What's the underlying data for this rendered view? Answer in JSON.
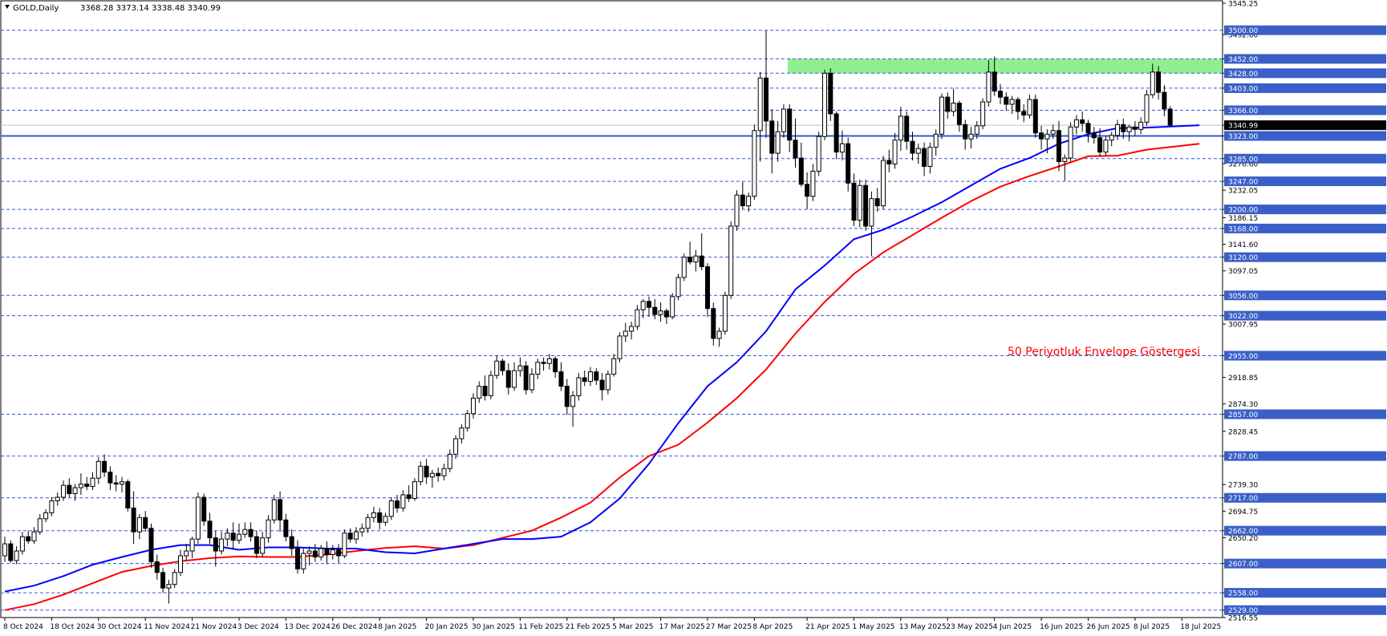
{
  "header": {
    "symbol": "GOLD,Daily",
    "ohlc": "3368.28 3373.14 3338.48 3340.99"
  },
  "annotation": "50 Periyotluk Envelope Göstergesi",
  "colors": {
    "bull_body": "#ffffff",
    "bear_body": "#000000",
    "candle_outline": "#000000",
    "level_line": "#2e5cd6",
    "key_level": "#2e5cd6",
    "upper_envelope": "#0000ff",
    "lower_envelope": "#ff0000",
    "resistance_zone": "#90ee90",
    "label_bg": "#3a5fc8",
    "label_text": "#ffffff",
    "current_price_bg": "#000000",
    "annotation": "#ff0000",
    "axis_text": "#000000"
  },
  "chart_data": {
    "type": "candlestick",
    "ylim": [
      2516.55,
      3545.25
    ],
    "y_ticks": [
      "3545.25",
      "3492.60",
      "3452.00",
      "3428.00",
      "3403.00",
      "3366.00",
      "3340.99",
      "3323.00",
      "3285.00",
      "3276.60",
      "3247.00",
      "3232.05",
      "3200.00",
      "3186.15",
      "3168.00",
      "3141.60",
      "3120.00",
      "3097.05",
      "3056.00",
      "3022.00",
      "3007.95",
      "2955.00",
      "2918.85",
      "2874.30",
      "2857.00",
      "2828.45",
      "2787.00",
      "2739.30",
      "2717.00",
      "2694.75",
      "2662.00",
      "2650.20",
      "2607.00",
      "2558.00",
      "2529.00",
      "2516.55"
    ],
    "price_levels": [
      3500,
      3452,
      3428,
      3403,
      3366,
      3323,
      3285,
      3247,
      3200,
      3168,
      3120,
      3056,
      3022,
      2955,
      2857,
      2787,
      2717,
      2662,
      2607,
      2558,
      2529
    ],
    "level_labels": [
      "3500.00",
      "3452.00",
      "3428.00",
      "3403.00",
      "3366.00",
      "3323.00",
      "3285.00",
      "3247.00",
      "3200.00",
      "3168.00",
      "3120.00",
      "3056.00",
      "3022.00",
      "2955.00",
      "2857.00",
      "2787.00",
      "2717.00",
      "2662.00",
      "2607.00",
      "2558.00",
      "2529.00"
    ],
    "key_level": 3323,
    "current_price": 3340.99,
    "current_price_label": "3340.99",
    "resistance_zone": [
      3428,
      3452
    ],
    "x_labels": [
      "8 Oct 2024",
      "18 Oct 2024",
      "30 Oct 2024",
      "11 Nov 2024",
      "21 Nov 2024",
      "3 Dec 2024",
      "13 Dec 2024",
      "26 Dec 2024",
      "8 Jan 2025",
      "20 Jan 2025",
      "30 Jan 2025",
      "11 Feb 2025",
      "21 Feb 2025",
      "5 Mar 2025",
      "17 Mar 2025",
      "27 Mar 2025",
      "8 Apr 2025",
      "21 Apr 2025",
      "1 May 2025",
      "13 May 2025",
      "23 May 2025",
      "4 Jun 2025",
      "16 Jun 2025",
      "26 Jun 2025",
      "8 Jul 2025",
      "18 Jul 2025"
    ],
    "x_label_index": [
      0,
      8,
      16,
      24,
      32,
      40,
      48,
      56,
      64,
      72,
      80,
      88,
      96,
      104,
      112,
      120,
      128,
      137,
      145,
      153,
      161,
      169,
      177,
      185,
      193,
      201
    ],
    "candles": [
      [
        2620,
        2652,
        2610,
        2640
      ],
      [
        2640,
        2646,
        2608,
        2612
      ],
      [
        2612,
        2636,
        2606,
        2628
      ],
      [
        2628,
        2660,
        2622,
        2652
      ],
      [
        2652,
        2662,
        2640,
        2645
      ],
      [
        2645,
        2668,
        2640,
        2660
      ],
      [
        2660,
        2690,
        2655,
        2682
      ],
      [
        2682,
        2698,
        2676,
        2692
      ],
      [
        2692,
        2718,
        2686,
        2712
      ],
      [
        2712,
        2726,
        2704,
        2718
      ],
      [
        2718,
        2746,
        2712,
        2738
      ],
      [
        2738,
        2750,
        2718,
        2724
      ],
      [
        2724,
        2740,
        2712,
        2734
      ],
      [
        2734,
        2758,
        2722,
        2740
      ],
      [
        2740,
        2752,
        2730,
        2736
      ],
      [
        2736,
        2760,
        2730,
        2750
      ],
      [
        2750,
        2785,
        2740,
        2778
      ],
      [
        2778,
        2790,
        2752,
        2760
      ],
      [
        2760,
        2770,
        2730,
        2742
      ],
      [
        2742,
        2755,
        2728,
        2740
      ],
      [
        2740,
        2752,
        2726,
        2744
      ],
      [
        2744,
        2748,
        2694,
        2700
      ],
      [
        2700,
        2728,
        2640,
        2660
      ],
      [
        2660,
        2690,
        2648,
        2684
      ],
      [
        2684,
        2695,
        2660,
        2666
      ],
      [
        2666,
        2674,
        2600,
        2610
      ],
      [
        2610,
        2622,
        2580,
        2592
      ],
      [
        2592,
        2600,
        2558,
        2566
      ],
      [
        2566,
        2580,
        2540,
        2572
      ],
      [
        2572,
        2598,
        2566,
        2592
      ],
      [
        2592,
        2630,
        2586,
        2620
      ],
      [
        2620,
        2640,
        2612,
        2628
      ],
      [
        2628,
        2652,
        2616,
        2648
      ],
      [
        2648,
        2726,
        2640,
        2718
      ],
      [
        2718,
        2724,
        2670,
        2678
      ],
      [
        2678,
        2692,
        2640,
        2650
      ],
      [
        2650,
        2662,
        2602,
        2628
      ],
      [
        2628,
        2660,
        2622,
        2648
      ],
      [
        2648,
        2666,
        2636,
        2658
      ],
      [
        2658,
        2676,
        2630,
        2646
      ],
      [
        2646,
        2674,
        2640,
        2656
      ],
      [
        2656,
        2676,
        2650,
        2664
      ],
      [
        2664,
        2676,
        2644,
        2652
      ],
      [
        2652,
        2662,
        2616,
        2624
      ],
      [
        2624,
        2660,
        2618,
        2650
      ],
      [
        2650,
        2688,
        2642,
        2680
      ],
      [
        2680,
        2722,
        2674,
        2714
      ],
      [
        2714,
        2728,
        2660,
        2680
      ],
      [
        2680,
        2690,
        2644,
        2652
      ],
      [
        2652,
        2664,
        2620,
        2632
      ],
      [
        2632,
        2646,
        2590,
        2598
      ],
      [
        2598,
        2632,
        2590,
        2624
      ],
      [
        2624,
        2636,
        2604,
        2628
      ],
      [
        2628,
        2640,
        2610,
        2618
      ],
      [
        2618,
        2638,
        2612,
        2632
      ],
      [
        2632,
        2644,
        2606,
        2622
      ],
      [
        2622,
        2638,
        2614,
        2630
      ],
      [
        2630,
        2640,
        2608,
        2620
      ],
      [
        2620,
        2664,
        2616,
        2658
      ],
      [
        2658,
        2666,
        2642,
        2648
      ],
      [
        2648,
        2668,
        2640,
        2660
      ],
      [
        2660,
        2674,
        2652,
        2666
      ],
      [
        2666,
        2690,
        2658,
        2684
      ],
      [
        2684,
        2702,
        2676,
        2692
      ],
      [
        2692,
        2700,
        2664,
        2676
      ],
      [
        2676,
        2692,
        2670,
        2686
      ],
      [
        2686,
        2718,
        2680,
        2712
      ],
      [
        2712,
        2722,
        2692,
        2700
      ],
      [
        2700,
        2730,
        2694,
        2722
      ],
      [
        2722,
        2738,
        2710,
        2716
      ],
      [
        2716,
        2750,
        2712,
        2744
      ],
      [
        2744,
        2778,
        2738,
        2770
      ],
      [
        2770,
        2782,
        2740,
        2752
      ],
      [
        2752,
        2764,
        2734,
        2758
      ],
      [
        2758,
        2768,
        2744,
        2754
      ],
      [
        2754,
        2774,
        2746,
        2766
      ],
      [
        2766,
        2798,
        2760,
        2790
      ],
      [
        2790,
        2822,
        2782,
        2816
      ],
      [
        2816,
        2840,
        2808,
        2834
      ],
      [
        2834,
        2864,
        2828,
        2858
      ],
      [
        2858,
        2892,
        2850,
        2884
      ],
      [
        2884,
        2912,
        2876,
        2904
      ],
      [
        2904,
        2922,
        2880,
        2888
      ],
      [
        2888,
        2930,
        2882,
        2922
      ],
      [
        2922,
        2956,
        2916,
        2946
      ],
      [
        2946,
        2950,
        2922,
        2930
      ],
      [
        2930,
        2942,
        2890,
        2902
      ],
      [
        2902,
        2944,
        2896,
        2930
      ],
      [
        2930,
        2952,
        2920,
        2938
      ],
      [
        2938,
        2946,
        2890,
        2898
      ],
      [
        2898,
        2934,
        2892,
        2924
      ],
      [
        2924,
        2950,
        2916,
        2944
      ],
      [
        2944,
        2952,
        2930,
        2942
      ],
      [
        2942,
        2958,
        2932,
        2950
      ],
      [
        2950,
        2954,
        2918,
        2928
      ],
      [
        2928,
        2944,
        2896,
        2904
      ],
      [
        2904,
        2916,
        2856,
        2870
      ],
      [
        2870,
        2896,
        2836,
        2888
      ],
      [
        2888,
        2926,
        2880,
        2918
      ],
      [
        2918,
        2930,
        2904,
        2912
      ],
      [
        2912,
        2936,
        2904,
        2928
      ],
      [
        2928,
        2934,
        2906,
        2914
      ],
      [
        2914,
        2926,
        2880,
        2898
      ],
      [
        2898,
        2930,
        2890,
        2924
      ],
      [
        2924,
        2958,
        2920,
        2950
      ],
      [
        2950,
        2994,
        2944,
        2988
      ],
      [
        2988,
        3010,
        2978,
        2996
      ],
      [
        2996,
        3012,
        2982,
        3004
      ],
      [
        3004,
        3040,
        2998,
        3032
      ],
      [
        3032,
        3050,
        3018,
        3046
      ],
      [
        3046,
        3054,
        3020,
        3036
      ],
      [
        3036,
        3050,
        3016,
        3024
      ],
      [
        3024,
        3044,
        3012,
        3030
      ],
      [
        3030,
        3034,
        3008,
        3020
      ],
      [
        3020,
        3060,
        3016,
        3054
      ],
      [
        3054,
        3092,
        3048,
        3086
      ],
      [
        3086,
        3126,
        3080,
        3120
      ],
      [
        3120,
        3146,
        3108,
        3112
      ],
      [
        3112,
        3132,
        3096,
        3122
      ],
      [
        3122,
        3160,
        3098,
        3104
      ],
      [
        3104,
        3110,
        3020,
        3034
      ],
      [
        3034,
        3044,
        2972,
        2984
      ],
      [
        2984,
        3002,
        2970,
        2996
      ],
      [
        2996,
        3062,
        2990,
        3056
      ],
      [
        3056,
        3180,
        3050,
        3172
      ],
      [
        3172,
        3232,
        3164,
        3224
      ],
      [
        3224,
        3246,
        3200,
        3206
      ],
      [
        3206,
        3228,
        3196,
        3222
      ],
      [
        3222,
        3342,
        3216,
        3332
      ],
      [
        3332,
        3430,
        3280,
        3420
      ],
      [
        3420,
        3500,
        3320,
        3348
      ],
      [
        3348,
        3368,
        3260,
        3294
      ],
      [
        3294,
        3348,
        3280,
        3330
      ],
      [
        3330,
        3376,
        3320,
        3368
      ],
      [
        3368,
        3376,
        3296,
        3316
      ],
      [
        3316,
        3352,
        3270,
        3286
      ],
      [
        3286,
        3312,
        3238,
        3242
      ],
      [
        3242,
        3262,
        3200,
        3222
      ],
      [
        3222,
        3276,
        3214,
        3264
      ],
      [
        3264,
        3330,
        3256,
        3322
      ],
      [
        3322,
        3434,
        3316,
        3428
      ],
      [
        3428,
        3436,
        3348,
        3360
      ],
      [
        3360,
        3364,
        3284,
        3296
      ],
      [
        3296,
        3332,
        3282,
        3310
      ],
      [
        3310,
        3320,
        3230,
        3244
      ],
      [
        3244,
        3260,
        3172,
        3182
      ],
      [
        3182,
        3250,
        3170,
        3240
      ],
      [
        3240,
        3250,
        3164,
        3172
      ],
      [
        3172,
        3230,
        3122,
        3218
      ],
      [
        3218,
        3236,
        3196,
        3206
      ],
      [
        3206,
        3290,
        3200,
        3282
      ],
      [
        3282,
        3300,
        3262,
        3276
      ],
      [
        3276,
        3328,
        3268,
        3316
      ],
      [
        3316,
        3372,
        3298,
        3356
      ],
      [
        3356,
        3364,
        3300,
        3314
      ],
      [
        3314,
        3330,
        3282,
        3294
      ],
      [
        3294,
        3310,
        3276,
        3302
      ],
      [
        3302,
        3312,
        3256,
        3272
      ],
      [
        3272,
        3312,
        3260,
        3304
      ],
      [
        3304,
        3334,
        3290,
        3326
      ],
      [
        3326,
        3394,
        3318,
        3388
      ],
      [
        3388,
        3396,
        3352,
        3364
      ],
      [
        3364,
        3402,
        3356,
        3378
      ],
      [
        3378,
        3382,
        3330,
        3342
      ],
      [
        3342,
        3350,
        3300,
        3318
      ],
      [
        3318,
        3338,
        3302,
        3326
      ],
      [
        3326,
        3348,
        3318,
        3340
      ],
      [
        3340,
        3386,
        3334,
        3380
      ],
      [
        3380,
        3450,
        3372,
        3430
      ],
      [
        3430,
        3456,
        3390,
        3398
      ],
      [
        3398,
        3410,
        3376,
        3388
      ],
      [
        3388,
        3396,
        3366,
        3376
      ],
      [
        3376,
        3390,
        3360,
        3384
      ],
      [
        3384,
        3388,
        3350,
        3364
      ],
      [
        3364,
        3376,
        3346,
        3358
      ],
      [
        3358,
        3392,
        3352,
        3384
      ],
      [
        3384,
        3392,
        3320,
        3328
      ],
      [
        3328,
        3340,
        3300,
        3318
      ],
      [
        3318,
        3334,
        3294,
        3326
      ],
      [
        3326,
        3342,
        3318,
        3332
      ],
      [
        3332,
        3348,
        3264,
        3280
      ],
      [
        3280,
        3292,
        3248,
        3286
      ],
      [
        3286,
        3346,
        3280,
        3338
      ],
      [
        3338,
        3358,
        3326,
        3350
      ],
      [
        3350,
        3364,
        3330,
        3344
      ],
      [
        3344,
        3350,
        3312,
        3328
      ],
      [
        3328,
        3338,
        3310,
        3320
      ],
      [
        3320,
        3336,
        3288,
        3296
      ],
      [
        3296,
        3322,
        3290,
        3316
      ],
      [
        3316,
        3330,
        3306,
        3324
      ],
      [
        3324,
        3350,
        3316,
        3342
      ],
      [
        3342,
        3352,
        3318,
        3330
      ],
      [
        3330,
        3342,
        3314,
        3338
      ],
      [
        3338,
        3348,
        3324,
        3334
      ],
      [
        3334,
        3354,
        3326,
        3346
      ],
      [
        3346,
        3400,
        3340,
        3392
      ],
      [
        3392,
        3444,
        3386,
        3430
      ],
      [
        3430,
        3440,
        3384,
        3396
      ],
      [
        3396,
        3408,
        3356,
        3368
      ],
      [
        3368,
        3373,
        3338,
        3341
      ]
    ],
    "upper_envelope": [
      2560,
      2570,
      2586,
      2605,
      2618,
      2630,
      2638,
      2638,
      2630,
      2634,
      2634,
      2632,
      2632,
      2626,
      2624,
      2632,
      2640,
      2648,
      2648,
      2652,
      2676,
      2716,
      2774,
      2842,
      2904,
      2944,
      2996,
      3066,
      3106,
      3150,
      3166,
      3188,
      3212,
      3240,
      3268,
      3286,
      3310,
      3326,
      3336,
      3337,
      3341
    ],
    "lower_envelope": [
      2529,
      2539,
      2555,
      2574,
      2593,
      2603,
      2611,
      2616,
      2619,
      2618,
      2618,
      2622,
      2628,
      2633,
      2636,
      2632,
      2638,
      2650,
      2662,
      2684,
      2709,
      2751,
      2787,
      2806,
      2843,
      2884,
      2932,
      2992,
      3045,
      3092,
      3128,
      3157,
      3186,
      3214,
      3238,
      3256,
      3272,
      3289,
      3290,
      3300,
      3310
    ],
    "envelope_index": [
      0,
      5,
      10,
      15,
      20,
      25,
      30,
      35,
      40,
      45,
      50,
      55,
      60,
      65,
      70,
      75,
      80,
      85,
      90,
      95,
      100,
      105,
      110,
      115,
      120,
      125,
      130,
      135,
      140,
      145,
      150,
      155,
      160,
      165,
      170,
      175,
      180,
      185,
      190,
      195,
      204
    ]
  }
}
